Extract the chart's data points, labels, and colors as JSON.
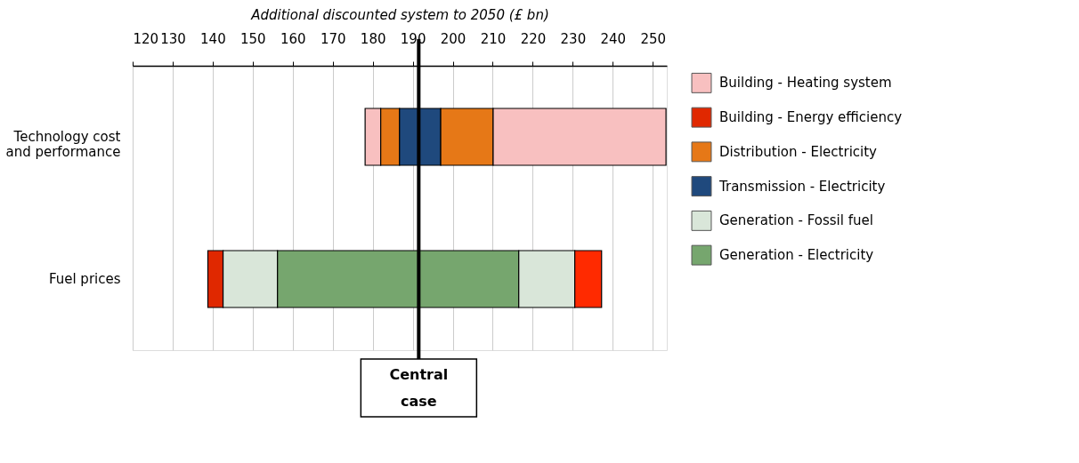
{
  "chart_data": {
    "type": "bar",
    "orientation": "horizontal",
    "xlabel": "Additional discounted system to 2050 (£ bn)",
    "categories": [
      "Technology cost and performance",
      "Fuel prices"
    ],
    "series": [
      {
        "name": "Building - Heating system",
        "color": "#f8c0c0",
        "base": [
          178.1,
          null
        ],
        "values": [
          3.9,
          null
        ]
      },
      {
        "name": "Building - Energy efficiency",
        "color": "#e02800",
        "base": [
          null,
          138.8
        ],
        "values": [
          null,
          3.8
        ]
      },
      {
        "name": "Distribution - Electricity",
        "color": "#e67817",
        "base": [
          182.0,
          null
        ],
        "values": [
          4.7,
          null
        ]
      },
      {
        "name": "Transmission - Electricity",
        "color": "#1f497d",
        "base": [
          186.7,
          null
        ],
        "values": [
          4.8,
          null
        ]
      },
      {
        "name": "Generation - Fossil fuel",
        "color": "#d9e6d9",
        "base": [
          null,
          142.6
        ],
        "values": [
          null,
          13.6
        ]
      },
      {
        "name": "Generation - Electricity",
        "color": "#76a66e",
        "base": [
          null,
          156.2
        ],
        "values": [
          null,
          35.3
        ]
      },
      {
        "color": "#1f497d",
        "base": [
          191.5,
          null
        ],
        "values": [
          5.5,
          null
        ]
      },
      {
        "color": "#76a66e",
        "base": [
          null,
          191.5
        ],
        "values": [
          null,
          25.0
        ]
      },
      {
        "color": "#e67817",
        "base": [
          197.0,
          null
        ],
        "values": [
          13.1,
          null
        ]
      },
      {
        "color": "#d9e6d9",
        "base": [
          null,
          216.5
        ],
        "values": [
          null,
          14.0
        ]
      },
      {
        "color": "#f8c0c0",
        "base": [
          210.1,
          null
        ],
        "values": [
          43.2,
          null
        ]
      },
      {
        "color": "#ff2a00",
        "base": [
          null,
          230.5
        ],
        "values": [
          null,
          6.7
        ]
      }
    ],
    "xlim": [
      120,
      253.5
    ],
    "xticks": [
      120,
      130,
      140,
      150,
      160,
      170,
      180,
      190,
      200,
      210,
      220,
      230,
      240,
      250
    ],
    "ref_lines": [
      {
        "axis": "x",
        "value": 191.5,
        "label": "Central case"
      }
    ],
    "grid": "x",
    "legend": "right"
  }
}
